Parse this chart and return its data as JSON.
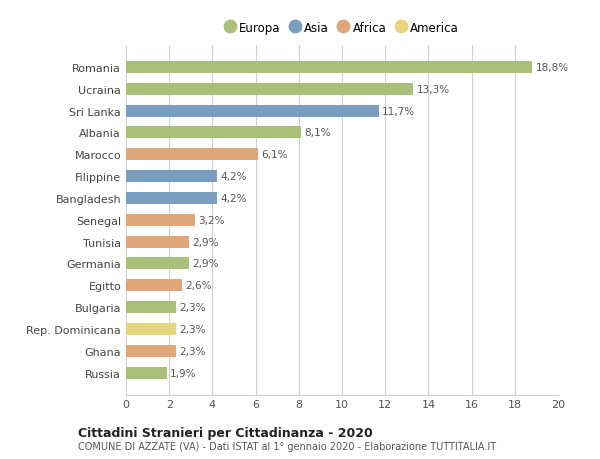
{
  "categories": [
    "Romania",
    "Ucraina",
    "Sri Lanka",
    "Albania",
    "Marocco",
    "Filippine",
    "Bangladesh",
    "Senegal",
    "Tunisia",
    "Germania",
    "Egitto",
    "Bulgaria",
    "Rep. Dominicana",
    "Ghana",
    "Russia"
  ],
  "values": [
    18.8,
    13.3,
    11.7,
    8.1,
    6.1,
    4.2,
    4.2,
    3.2,
    2.9,
    2.9,
    2.6,
    2.3,
    2.3,
    2.3,
    1.9
  ],
  "labels": [
    "18,8%",
    "13,3%",
    "11,7%",
    "8,1%",
    "6,1%",
    "4,2%",
    "4,2%",
    "3,2%",
    "2,9%",
    "2,9%",
    "2,6%",
    "2,3%",
    "2,3%",
    "2,3%",
    "1,9%"
  ],
  "continents": [
    "Europa",
    "Europa",
    "Asia",
    "Europa",
    "Africa",
    "Asia",
    "Asia",
    "Africa",
    "Africa",
    "Europa",
    "Africa",
    "Europa",
    "America",
    "Africa",
    "Europa"
  ],
  "colors": {
    "Europa": "#a8c07a",
    "Asia": "#7a9ec0",
    "Africa": "#e0a87a",
    "America": "#e8d47a"
  },
  "legend_order": [
    "Europa",
    "Asia",
    "Africa",
    "America"
  ],
  "xlim": [
    0,
    20
  ],
  "xticks": [
    0,
    2,
    4,
    6,
    8,
    10,
    12,
    14,
    16,
    18,
    20
  ],
  "title": "Cittadini Stranieri per Cittadinanza - 2020",
  "subtitle": "COMUNE DI AZZATE (VA) - Dati ISTAT al 1° gennaio 2020 - Elaborazione TUTTITALIA.IT",
  "background_color": "#ffffff",
  "grid_color": "#d0d0d0"
}
